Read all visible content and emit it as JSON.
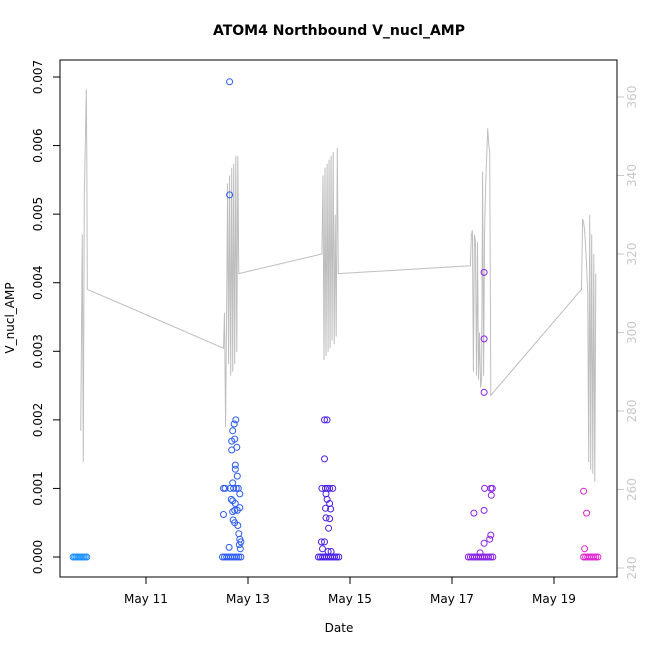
{
  "chart_data": {
    "type": "scatter",
    "title": "ATOM4 Northbound V_nucl_AMP",
    "xlabel": "Date",
    "ylabel": "V_nucl_AMP",
    "x_ticks": [
      "May 11",
      "May 13",
      "May 15",
      "May 17",
      "May 19"
    ],
    "x_tick_days": [
      11,
      13,
      15,
      17,
      19
    ],
    "xlim": [
      9.45,
      19.9
    ],
    "ylim": [
      0,
      0.007
    ],
    "y_ticks": [
      0.0,
      0.001,
      0.002,
      0.003,
      0.004,
      0.005,
      0.006,
      0.007
    ],
    "y_tick_labels": [
      "0.000",
      "0.001",
      "0.002",
      "0.003",
      "0.004",
      "0.005",
      "0.006",
      "0.007"
    ],
    "y2lim": [
      240,
      365
    ],
    "y2_ticks": [
      240,
      260,
      280,
      300,
      320,
      340,
      360
    ],
    "y2_tick_labels": [
      "240",
      "260",
      "280",
      "300",
      "320",
      "340",
      "360"
    ],
    "colors": {
      "background": "#ffffff",
      "frame": "#000000",
      "right_axis": "#c8c8c8",
      "line": "#bebebe"
    },
    "points": [
      {
        "x": 9.57,
        "y": 0.0,
        "color": "#1e90ff"
      },
      {
        "x": 9.6,
        "y": 0.0,
        "color": "#1e90ff"
      },
      {
        "x": 9.63,
        "y": 0.0,
        "color": "#1e90ff"
      },
      {
        "x": 9.66,
        "y": 0.0,
        "color": "#1e90ff"
      },
      {
        "x": 9.69,
        "y": 0.0,
        "color": "#1e90ff"
      },
      {
        "x": 9.72,
        "y": 0.0,
        "color": "#1e90ff"
      },
      {
        "x": 9.75,
        "y": 0.0,
        "color": "#1e90ff"
      },
      {
        "x": 9.78,
        "y": 0.0,
        "color": "#1e90ff"
      },
      {
        "x": 9.81,
        "y": 0.0,
        "color": "#1e90ff"
      },
      {
        "x": 9.84,
        "y": 0.0,
        "color": "#1e90ff"
      },
      {
        "x": 12.5,
        "y": 0.0,
        "color": "#2b5bf2"
      },
      {
        "x": 12.54,
        "y": 0.0,
        "color": "#2b5bf2"
      },
      {
        "x": 12.58,
        "y": 0.0,
        "color": "#2b5bf2"
      },
      {
        "x": 12.62,
        "y": 0.0,
        "color": "#2b5bf2"
      },
      {
        "x": 12.66,
        "y": 0.0,
        "color": "#2b5bf2"
      },
      {
        "x": 12.7,
        "y": 0.0,
        "color": "#2b5bf2"
      },
      {
        "x": 12.74,
        "y": 0.0,
        "color": "#2b5bf2"
      },
      {
        "x": 12.78,
        "y": 0.0,
        "color": "#2b5bf2"
      },
      {
        "x": 12.82,
        "y": 0.0,
        "color": "#2b5bf2"
      },
      {
        "x": 12.86,
        "y": 0.0,
        "color": "#2b5bf2"
      },
      {
        "x": 12.52,
        "y": 0.001,
        "color": "#2b5bf2"
      },
      {
        "x": 12.55,
        "y": 0.001,
        "color": "#2b5bf2"
      },
      {
        "x": 12.52,
        "y": 0.00062,
        "color": "#2b5bf2"
      },
      {
        "x": 12.64,
        "y": 0.00693,
        "color": "#2b5bf2"
      },
      {
        "x": 12.64,
        "y": 0.00528,
        "color": "#2b5bf2"
      },
      {
        "x": 12.76,
        "y": 0.002,
        "color": "#2b5bf2"
      },
      {
        "x": 12.73,
        "y": 0.00194,
        "color": "#2b5bf2"
      },
      {
        "x": 12.7,
        "y": 0.00184,
        "color": "#2b5bf2"
      },
      {
        "x": 12.68,
        "y": 0.00169,
        "color": "#2b5bf2"
      },
      {
        "x": 12.74,
        "y": 0.00172,
        "color": "#2b5bf2"
      },
      {
        "x": 12.68,
        "y": 0.00156,
        "color": "#2b5bf2"
      },
      {
        "x": 12.78,
        "y": 0.0016,
        "color": "#2b5bf2"
      },
      {
        "x": 12.75,
        "y": 0.00134,
        "color": "#2b5bf2"
      },
      {
        "x": 12.75,
        "y": 0.00128,
        "color": "#2b5bf2"
      },
      {
        "x": 12.79,
        "y": 0.00118,
        "color": "#2b5bf2"
      },
      {
        "x": 12.7,
        "y": 0.00108,
        "color": "#2b5bf2"
      },
      {
        "x": 12.65,
        "y": 0.001,
        "color": "#2b5bf2"
      },
      {
        "x": 12.72,
        "y": 0.001,
        "color": "#2b5bf2"
      },
      {
        "x": 12.77,
        "y": 0.001,
        "color": "#2b5bf2"
      },
      {
        "x": 12.81,
        "y": 0.001,
        "color": "#2b5bf2"
      },
      {
        "x": 12.84,
        "y": 0.00092,
        "color": "#2b5bf2"
      },
      {
        "x": 12.67,
        "y": 0.00084,
        "color": "#2b5bf2"
      },
      {
        "x": 12.7,
        "y": 0.00082,
        "color": "#2b5bf2"
      },
      {
        "x": 12.75,
        "y": 0.00078,
        "color": "#2b5bf2"
      },
      {
        "x": 12.84,
        "y": 0.00072,
        "color": "#2b5bf2"
      },
      {
        "x": 12.79,
        "y": 0.00068,
        "color": "#2b5bf2"
      },
      {
        "x": 12.74,
        "y": 0.00068,
        "color": "#2b5bf2"
      },
      {
        "x": 12.7,
        "y": 0.00066,
        "color": "#2b5bf2"
      },
      {
        "x": 12.71,
        "y": 0.00054,
        "color": "#2b5bf2"
      },
      {
        "x": 12.74,
        "y": 0.0005,
        "color": "#2b5bf2"
      },
      {
        "x": 12.8,
        "y": 0.00046,
        "color": "#2b5bf2"
      },
      {
        "x": 12.82,
        "y": 0.00034,
        "color": "#2b5bf2"
      },
      {
        "x": 12.84,
        "y": 0.00026,
        "color": "#2b5bf2"
      },
      {
        "x": 12.86,
        "y": 0.00022,
        "color": "#2b5bf2"
      },
      {
        "x": 12.63,
        "y": 0.00014,
        "color": "#2b5bf2"
      },
      {
        "x": 12.83,
        "y": 0.00018,
        "color": "#2b5bf2"
      },
      {
        "x": 12.85,
        "y": 0.00012,
        "color": "#2b5bf2"
      },
      {
        "x": 14.38,
        "y": 0.0,
        "color": "#4b1ee8"
      },
      {
        "x": 14.42,
        "y": 0.0,
        "color": "#4b1ee8"
      },
      {
        "x": 14.46,
        "y": 0.0,
        "color": "#4b1ee8"
      },
      {
        "x": 14.5,
        "y": 0.0,
        "color": "#4b1ee8"
      },
      {
        "x": 14.54,
        "y": 0.0,
        "color": "#4b1ee8"
      },
      {
        "x": 14.58,
        "y": 0.0,
        "color": "#4b1ee8"
      },
      {
        "x": 14.62,
        "y": 0.0,
        "color": "#4b1ee8"
      },
      {
        "x": 14.66,
        "y": 0.0,
        "color": "#4b1ee8"
      },
      {
        "x": 14.7,
        "y": 0.0,
        "color": "#4b1ee8"
      },
      {
        "x": 14.74,
        "y": 0.0,
        "color": "#4b1ee8"
      },
      {
        "x": 14.78,
        "y": 0.0,
        "color": "#4b1ee8"
      },
      {
        "x": 14.5,
        "y": 0.002,
        "color": "#4b1ee8"
      },
      {
        "x": 14.55,
        "y": 0.002,
        "color": "#4b1ee8"
      },
      {
        "x": 14.5,
        "y": 0.00143,
        "color": "#4b1ee8"
      },
      {
        "x": 14.45,
        "y": 0.001,
        "color": "#4b1ee8"
      },
      {
        "x": 14.52,
        "y": 0.001,
        "color": "#4b1ee8"
      },
      {
        "x": 14.56,
        "y": 0.001,
        "color": "#4b1ee8"
      },
      {
        "x": 14.6,
        "y": 0.001,
        "color": "#4b1ee8"
      },
      {
        "x": 14.66,
        "y": 0.001,
        "color": "#4b1ee8"
      },
      {
        "x": 14.53,
        "y": 0.00092,
        "color": "#4b1ee8"
      },
      {
        "x": 14.55,
        "y": 0.00084,
        "color": "#4b1ee8"
      },
      {
        "x": 14.6,
        "y": 0.00078,
        "color": "#4b1ee8"
      },
      {
        "x": 14.52,
        "y": 0.00071,
        "color": "#4b1ee8"
      },
      {
        "x": 14.62,
        "y": 0.0007,
        "color": "#4b1ee8"
      },
      {
        "x": 14.53,
        "y": 0.00057,
        "color": "#4b1ee8"
      },
      {
        "x": 14.6,
        "y": 0.00056,
        "color": "#4b1ee8"
      },
      {
        "x": 14.58,
        "y": 0.00042,
        "color": "#4b1ee8"
      },
      {
        "x": 14.44,
        "y": 0.00022,
        "color": "#4b1ee8"
      },
      {
        "x": 14.5,
        "y": 0.00022,
        "color": "#4b1ee8"
      },
      {
        "x": 14.46,
        "y": 0.00012,
        "color": "#4b1ee8"
      },
      {
        "x": 14.57,
        "y": 8e-05,
        "color": "#4b1ee8"
      },
      {
        "x": 14.63,
        "y": 8e-05,
        "color": "#4b1ee8"
      },
      {
        "x": 17.32,
        "y": 0.0,
        "color": "#8a22e8"
      },
      {
        "x": 17.36,
        "y": 0.0,
        "color": "#8a22e8"
      },
      {
        "x": 17.4,
        "y": 0.0,
        "color": "#8a22e8"
      },
      {
        "x": 17.44,
        "y": 0.0,
        "color": "#8a22e8"
      },
      {
        "x": 17.48,
        "y": 0.0,
        "color": "#8a22e8"
      },
      {
        "x": 17.52,
        "y": 0.0,
        "color": "#8a22e8"
      },
      {
        "x": 17.56,
        "y": 0.0,
        "color": "#8a22e8"
      },
      {
        "x": 17.6,
        "y": 0.0,
        "color": "#8a22e8"
      },
      {
        "x": 17.64,
        "y": 0.0,
        "color": "#8a22e8"
      },
      {
        "x": 17.68,
        "y": 0.0,
        "color": "#8a22e8"
      },
      {
        "x": 17.72,
        "y": 0.0,
        "color": "#8a22e8"
      },
      {
        "x": 17.76,
        "y": 0.0,
        "color": "#8a22e8"
      },
      {
        "x": 17.8,
        "y": 0.0,
        "color": "#8a22e8"
      },
      {
        "x": 17.63,
        "y": 0.00415,
        "color": "#8a22e8"
      },
      {
        "x": 17.63,
        "y": 0.00318,
        "color": "#8a22e8"
      },
      {
        "x": 17.63,
        "y": 0.0024,
        "color": "#8a22e8"
      },
      {
        "x": 17.64,
        "y": 0.001,
        "color": "#8a22e8"
      },
      {
        "x": 17.76,
        "y": 0.001,
        "color": "#8a22e8"
      },
      {
        "x": 17.79,
        "y": 0.001,
        "color": "#8a22e8"
      },
      {
        "x": 17.77,
        "y": 0.0009,
        "color": "#8a22e8"
      },
      {
        "x": 17.43,
        "y": 0.00064,
        "color": "#8a22e8"
      },
      {
        "x": 17.63,
        "y": 0.00068,
        "color": "#8a22e8"
      },
      {
        "x": 17.76,
        "y": 0.00032,
        "color": "#8a22e8"
      },
      {
        "x": 17.74,
        "y": 0.00026,
        "color": "#8a22e8"
      },
      {
        "x": 17.63,
        "y": 0.0002,
        "color": "#8a22e8"
      },
      {
        "x": 17.55,
        "y": 6e-05,
        "color": "#8a22e8"
      },
      {
        "x": 19.58,
        "y": 0.0,
        "color": "#e020d0"
      },
      {
        "x": 19.62,
        "y": 0.0,
        "color": "#e020d0"
      },
      {
        "x": 19.66,
        "y": 0.0,
        "color": "#e020d0"
      },
      {
        "x": 19.7,
        "y": 0.0,
        "color": "#e020d0"
      },
      {
        "x": 19.74,
        "y": 0.0,
        "color": "#e020d0"
      },
      {
        "x": 19.78,
        "y": 0.0,
        "color": "#e020d0"
      },
      {
        "x": 19.82,
        "y": 0.0,
        "color": "#e020d0"
      },
      {
        "x": 19.86,
        "y": 0.0,
        "color": "#e020d0"
      },
      {
        "x": 19.58,
        "y": 0.00096,
        "color": "#e020d0"
      },
      {
        "x": 19.64,
        "y": 0.00064,
        "color": "#e020d0"
      },
      {
        "x": 19.6,
        "y": 0.00012,
        "color": "#e020d0"
      }
    ],
    "line": [
      [
        9.72,
        275
      ],
      [
        9.75,
        325
      ],
      [
        9.77,
        267
      ],
      [
        9.79,
        335
      ],
      [
        9.81,
        348
      ],
      [
        9.83,
        362
      ],
      [
        9.84,
        345
      ],
      [
        9.85,
        311
      ],
      [
        12.52,
        296
      ],
      [
        12.54,
        305
      ],
      [
        12.56,
        276
      ],
      [
        12.58,
        305
      ],
      [
        12.6,
        338
      ],
      [
        12.62,
        292
      ],
      [
        12.64,
        340
      ],
      [
        12.66,
        289
      ],
      [
        12.68,
        342
      ],
      [
        12.7,
        290
      ],
      [
        12.72,
        343
      ],
      [
        12.74,
        292
      ],
      [
        12.76,
        345
      ],
      [
        12.78,
        295
      ],
      [
        12.8,
        345
      ],
      [
        12.82,
        315
      ],
      [
        14.45,
        320
      ],
      [
        14.47,
        340
      ],
      [
        14.49,
        293
      ],
      [
        14.51,
        342
      ],
      [
        14.53,
        294
      ],
      [
        14.55,
        343
      ],
      [
        14.57,
        295
      ],
      [
        14.59,
        344
      ],
      [
        14.61,
        296
      ],
      [
        14.63,
        345
      ],
      [
        14.65,
        298
      ],
      [
        14.67,
        346
      ],
      [
        14.69,
        297
      ],
      [
        14.71,
        330
      ],
      [
        14.73,
        299
      ],
      [
        14.75,
        347
      ],
      [
        14.77,
        315
      ],
      [
        17.36,
        317
      ],
      [
        17.38,
        325
      ],
      [
        17.4,
        326
      ],
      [
        17.42,
        290
      ],
      [
        17.44,
        325
      ],
      [
        17.46,
        323
      ],
      [
        17.48,
        289
      ],
      [
        17.5,
        323
      ],
      [
        17.52,
        288
      ],
      [
        17.54,
        300
      ],
      [
        17.56,
        286
      ],
      [
        17.58,
        288
      ],
      [
        17.6,
        341
      ],
      [
        17.62,
        289
      ],
      [
        17.64,
        326
      ],
      [
        17.66,
        338
      ],
      [
        17.68,
        345
      ],
      [
        17.7,
        352
      ],
      [
        17.72,
        348
      ],
      [
        17.74,
        346
      ],
      [
        17.76,
        284
      ],
      [
        19.54,
        311
      ],
      [
        19.56,
        329
      ],
      [
        19.58,
        328
      ],
      [
        19.6,
        326
      ],
      [
        19.62,
        322
      ],
      [
        19.64,
        317
      ],
      [
        19.66,
        310
      ],
      [
        19.68,
        267
      ],
      [
        19.7,
        330
      ],
      [
        19.72,
        265
      ],
      [
        19.74,
        325
      ],
      [
        19.76,
        264
      ],
      [
        19.78,
        320
      ],
      [
        19.8,
        262
      ],
      [
        19.82,
        315
      ]
    ]
  }
}
